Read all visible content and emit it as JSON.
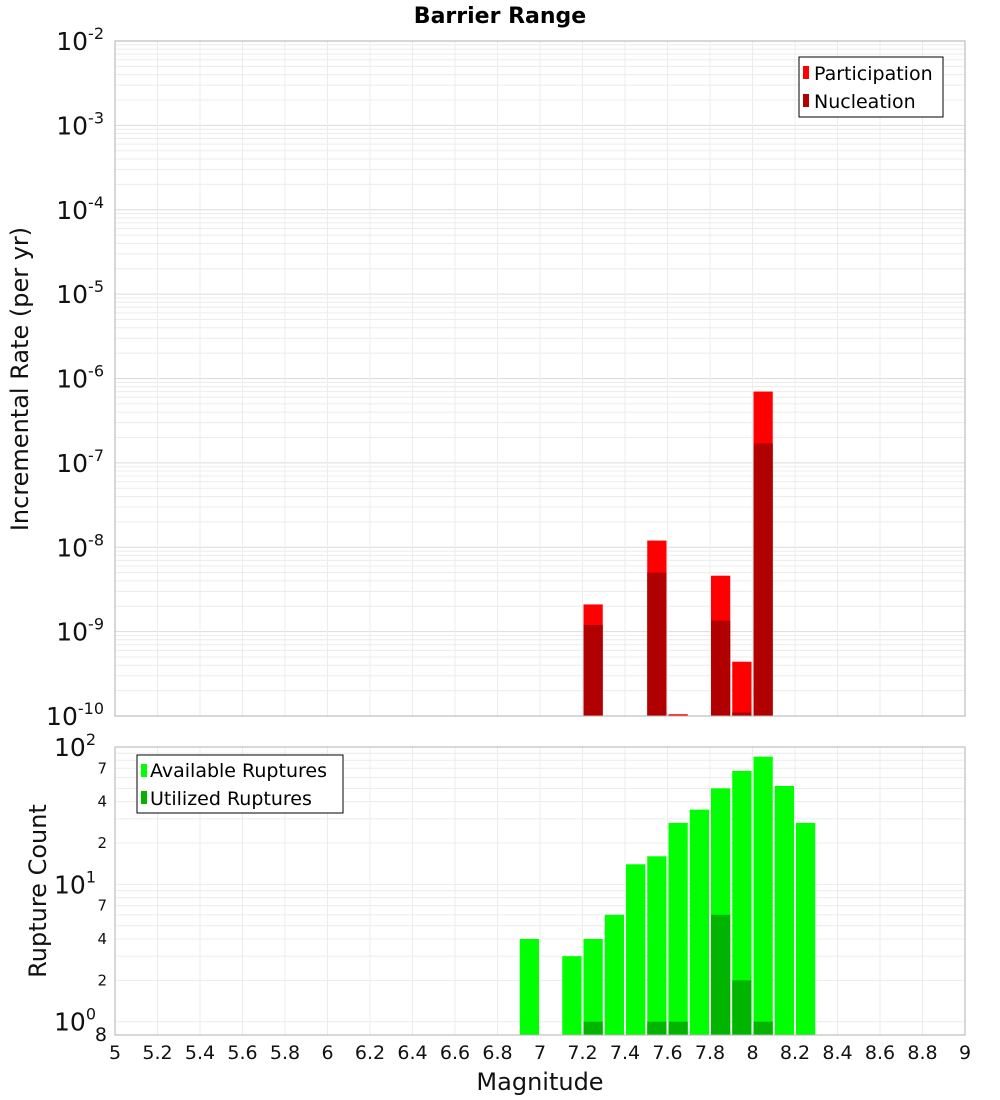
{
  "chart_data": [
    {
      "type": "bar",
      "title": "Barrier Range",
      "xlabel": "Magnitude",
      "ylabel": "Incremental Rate (per yr)",
      "yscale": "log",
      "ylim": [
        1e-10,
        0.01
      ],
      "xlim": [
        5,
        9
      ],
      "bar_width": 0.1,
      "y_ticks": [
        {
          "base": "10",
          "exp": "-2"
        },
        {
          "base": "10",
          "exp": "-3"
        },
        {
          "base": "10",
          "exp": "-4"
        },
        {
          "base": "10",
          "exp": "-5"
        },
        {
          "base": "10",
          "exp": "-6"
        },
        {
          "base": "10",
          "exp": "-7"
        },
        {
          "base": "10",
          "exp": "-8"
        },
        {
          "base": "10",
          "exp": "-9"
        },
        {
          "base": "10",
          "exp": "-10"
        }
      ],
      "grid": true,
      "legend_position": "top-right",
      "series": [
        {
          "name": "Participation",
          "color": "#ff0000",
          "x": [
            7.25,
            7.55,
            7.65,
            7.85,
            7.95,
            8.05
          ],
          "values": [
            2.1e-09,
            1.2e-08,
            1.05e-10,
            4.6e-09,
            4.4e-10,
            7e-07
          ]
        },
        {
          "name": "Nucleation",
          "color": "#b00000",
          "x": [
            7.25,
            7.55,
            7.85,
            7.95,
            8.05
          ],
          "values": [
            1.2e-09,
            5e-09,
            1.35e-09,
            1.1e-10,
            1.7e-07
          ]
        }
      ]
    },
    {
      "type": "bar",
      "xlabel": "Magnitude",
      "ylabel": "Rupture Count",
      "yscale": "log",
      "ylim": [
        0.8,
        100
      ],
      "xlim": [
        5,
        9
      ],
      "bar_width": 0.1,
      "x_ticks": [
        "5",
        "5.2",
        "5.4",
        "5.6",
        "5.8",
        "6",
        "6.2",
        "6.4",
        "6.6",
        "6.8",
        "7",
        "7.2",
        "7.4",
        "7.6",
        "7.8",
        "8",
        "8.2",
        "8.4",
        "8.6",
        "8.8",
        "9"
      ],
      "y_major_ticks": [
        {
          "value": 1,
          "base": "10",
          "exp": "0"
        },
        {
          "value": 10,
          "base": "10",
          "exp": "1"
        },
        {
          "value": 100,
          "base": "10",
          "exp": "2"
        }
      ],
      "y_minor_ticks": [
        {
          "value": 0.8,
          "label": "8"
        },
        {
          "value": 2,
          "label": "2"
        },
        {
          "value": 4,
          "label": "4"
        },
        {
          "value": 7,
          "label": "7"
        },
        {
          "value": 20,
          "label": "2"
        },
        {
          "value": 40,
          "label": "4"
        },
        {
          "value": 70,
          "label": "7"
        }
      ],
      "grid": true,
      "legend_position": "top-left",
      "series": [
        {
          "name": "Available Ruptures",
          "color": "#00ff00",
          "x": [
            6.95,
            7.15,
            7.25,
            7.35,
            7.45,
            7.55,
            7.65,
            7.75,
            7.85,
            7.95,
            8.05,
            8.15,
            8.25
          ],
          "values": [
            4,
            3,
            4,
            6,
            14,
            16,
            28,
            35,
            50,
            67,
            85,
            52,
            28
          ]
        },
        {
          "name": "Utilized Ruptures",
          "color": "#00b400",
          "x": [
            7.25,
            7.55,
            7.65,
            7.85,
            7.95,
            8.05
          ],
          "values": [
            1,
            1,
            1,
            6,
            2,
            1
          ]
        }
      ]
    }
  ]
}
